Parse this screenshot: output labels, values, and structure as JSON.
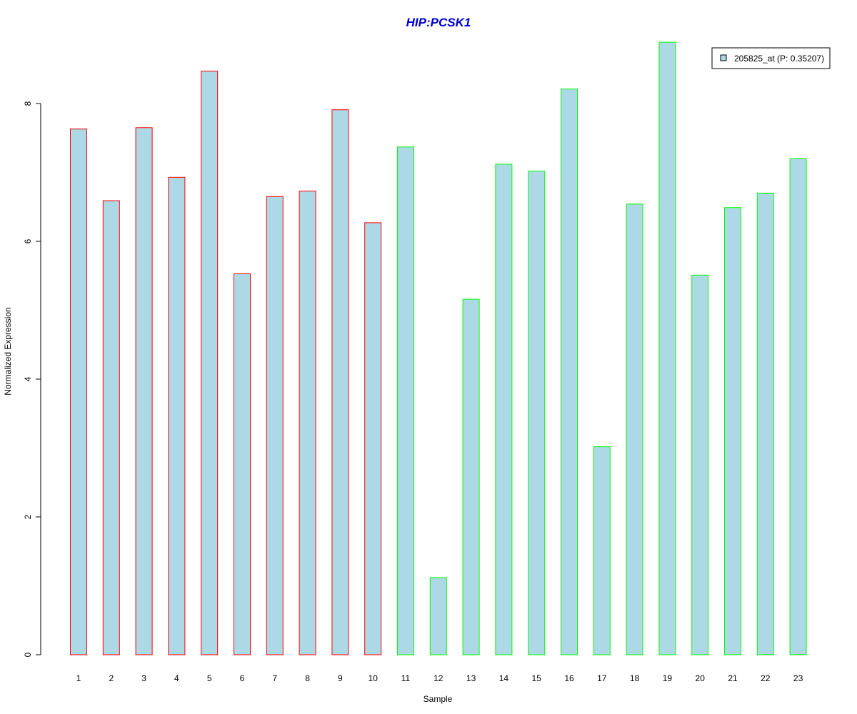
{
  "chart_data": {
    "type": "bar",
    "title": "HIP:PCSK1",
    "xlabel": "Sample",
    "ylabel": "Normalized Expression",
    "categories": [
      "1",
      "2",
      "3",
      "4",
      "5",
      "6",
      "7",
      "8",
      "9",
      "10",
      "11",
      "12",
      "13",
      "14",
      "15",
      "16",
      "17",
      "18",
      "19",
      "20",
      "21",
      "22",
      "23"
    ],
    "values": [
      7.63,
      6.59,
      7.65,
      6.93,
      8.47,
      5.53,
      6.65,
      6.73,
      7.91,
      6.27,
      7.37,
      1.12,
      5.16,
      7.12,
      7.02,
      8.21,
      3.02,
      6.54,
      8.89,
      5.51,
      6.49,
      6.7,
      7.2
    ],
    "group_outline_colors": [
      "#ff0000",
      "#ff0000",
      "#ff0000",
      "#ff0000",
      "#ff0000",
      "#ff0000",
      "#ff0000",
      "#ff0000",
      "#ff0000",
      "#ff0000",
      "#00ff00",
      "#00ff00",
      "#00ff00",
      "#00ff00",
      "#00ff00",
      "#00ff00",
      "#00ff00",
      "#00ff00",
      "#00ff00",
      "#00ff00",
      "#00ff00",
      "#00ff00",
      "#00ff00"
    ],
    "yticks": [
      "0",
      "2",
      "4",
      "6",
      "8"
    ],
    "ylim": [
      0,
      8.9
    ],
    "legend": {
      "label": "205825_at (P: 0.35207)",
      "position": "top-right"
    },
    "grid": false
  },
  "colors": {
    "bar_fill": "#add8e6",
    "title": "#0000cd",
    "axis": "#000000",
    "background": "#ffffff"
  }
}
